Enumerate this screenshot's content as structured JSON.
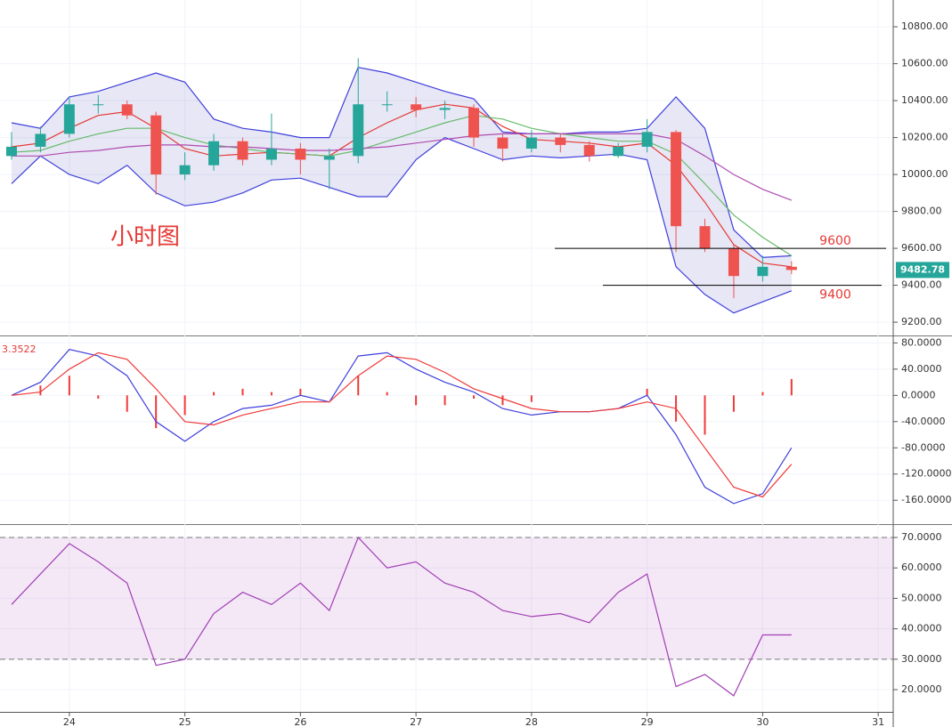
{
  "chart_data": [
    {
      "type": "candlestick",
      "title": "小时图",
      "x": [
        23.5,
        23.75,
        24,
        24.25,
        24.5,
        24.75,
        25,
        25.25,
        25.5,
        25.75,
        26,
        26.25,
        26.5,
        26.75,
        27,
        27.25,
        27.5,
        27.75,
        28,
        28.25,
        28.5,
        28.75,
        29,
        29.25,
        29.5,
        29.75,
        30,
        30.25
      ],
      "open": [
        10100,
        10150,
        10220,
        10380,
        10380,
        10320,
        10000,
        10050,
        10180,
        10080,
        10140,
        10080,
        10100,
        10380,
        10380,
        10350,
        10360,
        10200,
        10140,
        10200,
        10160,
        10100,
        10150,
        10230,
        9720,
        9600,
        9450,
        9500
      ],
      "high": [
        10230,
        10260,
        10420,
        10430,
        10400,
        10340,
        10120,
        10220,
        10200,
        10330,
        10170,
        10140,
        10630,
        10450,
        10420,
        10400,
        10380,
        10220,
        10240,
        10220,
        10180,
        10170,
        10300,
        10240,
        9760,
        9620,
        9560,
        9530
      ],
      "low": [
        10080,
        10120,
        10200,
        10330,
        10300,
        9890,
        9970,
        10020,
        10050,
        10050,
        10000,
        9920,
        10060,
        10340,
        10310,
        10300,
        10150,
        10070,
        10120,
        10120,
        10070,
        10090,
        10120,
        9580,
        9580,
        9330,
        9420,
        9460
      ],
      "close": [
        10150,
        10220,
        10380,
        10380,
        10320,
        10000,
        10050,
        10180,
        10080,
        10140,
        10080,
        10100,
        10380,
        10380,
        10350,
        10360,
        10200,
        10140,
        10200,
        10160,
        10100,
        10150,
        10230,
        9720,
        9600,
        9450,
        9500,
        9482.78
      ],
      "color_up": "#26a69a",
      "color_down": "#ef5350",
      "bands": {
        "color": "#3f3fdc",
        "fill": "rgba(120,120,200,0.18)",
        "upper": [
          10280,
          10250,
          10420,
          10450,
          10500,
          10550,
          10500,
          10300,
          10250,
          10230,
          10200,
          10200,
          10580,
          10550,
          10500,
          10450,
          10410,
          10230,
          10220,
          10220,
          10230,
          10230,
          10250,
          10420,
          10250,
          9700,
          9550,
          9560
        ],
        "lower": [
          9950,
          10100,
          10000,
          9950,
          10050,
          9900,
          9830,
          9850,
          9900,
          9970,
          9980,
          9930,
          9880,
          9880,
          10080,
          10200,
          10140,
          10080,
          10100,
          10090,
          10100,
          10110,
          10080,
          9500,
          9350,
          9250,
          9310,
          9370
        ]
      },
      "overlays": [
        {
          "color": "#e53935",
          "values": [
            10150,
            10170,
            10250,
            10320,
            10340,
            10250,
            10140,
            10100,
            10110,
            10120,
            10110,
            10100,
            10200,
            10280,
            10350,
            10380,
            10360,
            10260,
            10190,
            10180,
            10170,
            10150,
            10170,
            10050,
            9850,
            9620,
            9520,
            9500
          ]
        },
        {
          "color": "#66bb6a",
          "values": [
            10120,
            10130,
            10180,
            10220,
            10250,
            10250,
            10200,
            10160,
            10140,
            10120,
            10110,
            10100,
            10130,
            10180,
            10230,
            10280,
            10320,
            10300,
            10250,
            10220,
            10200,
            10180,
            10180,
            10110,
            9950,
            9780,
            9660,
            9560
          ]
        },
        {
          "color": "#b04cb0",
          "values": [
            10100,
            10100,
            10120,
            10130,
            10150,
            10160,
            10160,
            10150,
            10150,
            10140,
            10130,
            10130,
            10140,
            10150,
            10170,
            10190,
            10210,
            10220,
            10220,
            10220,
            10220,
            10220,
            10220,
            10190,
            10100,
            10000,
            9920,
            9860
          ]
        }
      ],
      "levels": [
        9600,
        9400
      ],
      "last_price": 9482.78,
      "xlim": [
        23.4,
        31.13
      ],
      "ylim": [
        9128,
        10945
      ],
      "yticks": [
        {
          "value": 9200,
          "label": "9200.00"
        },
        {
          "value": 9400,
          "label": "9400.00"
        },
        {
          "value": 9600,
          "label": "9600.00"
        },
        {
          "value": 9800,
          "label": "9800.00"
        },
        {
          "value": 10000,
          "label": "10000.00"
        },
        {
          "value": 10200,
          "label": "10200.00"
        },
        {
          "value": 10400,
          "label": "10400.00"
        },
        {
          "value": 10600,
          "label": "10600.00"
        },
        {
          "value": 10800,
          "label": "10800.00"
        }
      ]
    },
    {
      "type": "macd",
      "label": "3.3522",
      "macd": {
        "color": "#3f3fdc",
        "values": [
          0,
          20,
          70,
          60,
          30,
          -40,
          -70,
          -40,
          -20,
          -15,
          0,
          -10,
          60,
          65,
          40,
          20,
          5,
          -20,
          -30,
          -25,
          -25,
          -20,
          0,
          -60,
          -140,
          -165,
          -150,
          -80
        ]
      },
      "signal": {
        "color": "#f03a3a",
        "values": [
          0,
          5,
          40,
          65,
          55,
          10,
          -40,
          -45,
          -30,
          -20,
          -10,
          -10,
          30,
          60,
          55,
          35,
          10,
          -5,
          -20,
          -25,
          -25,
          -20,
          -10,
          -20,
          -80,
          -140,
          -155,
          -105
        ]
      },
      "histogram": {
        "color": "#f03a3a",
        "values": [
          0,
          15,
          30,
          -5,
          -25,
          -50,
          -30,
          5,
          10,
          5,
          10,
          0,
          30,
          5,
          -15,
          -15,
          -5,
          -15,
          -10,
          0,
          0,
          0,
          10,
          -40,
          -60,
          -25,
          5,
          25
        ]
      },
      "ylim": [
        -195,
        90
      ],
      "yticks": [
        {
          "value": 80,
          "label": "80.0000"
        },
        {
          "value": 40,
          "label": "40.0000"
        },
        {
          "value": 0,
          "label": "0.0000"
        },
        {
          "value": -40,
          "label": "-40.0000"
        },
        {
          "value": -80,
          "label": "-80.0000"
        },
        {
          "value": -120,
          "label": "-120.0000"
        },
        {
          "value": -160,
          "label": "-160.0000"
        }
      ]
    },
    {
      "type": "rsi",
      "color": "#a13fb5",
      "values": [
        48,
        58,
        68,
        62,
        55,
        28,
        30,
        45,
        52,
        48,
        55,
        46,
        70,
        60,
        62,
        55,
        52,
        46,
        44,
        45,
        42,
        52,
        58,
        21,
        25,
        18,
        38,
        38
      ],
      "band": [
        30,
        70
      ],
      "ylim": [
        12.7,
        74.1
      ],
      "yticks": [
        {
          "value": 20,
          "label": "20.0000"
        },
        {
          "value": 30,
          "label": "30.0000"
        },
        {
          "value": 40,
          "label": "40.0000"
        },
        {
          "value": 50,
          "label": "50.0000"
        },
        {
          "value": 60,
          "label": "60.0000"
        },
        {
          "value": 70,
          "label": "70.0000"
        }
      ],
      "xticks": [
        24,
        25,
        26,
        27,
        28,
        29,
        30,
        31
      ]
    }
  ]
}
